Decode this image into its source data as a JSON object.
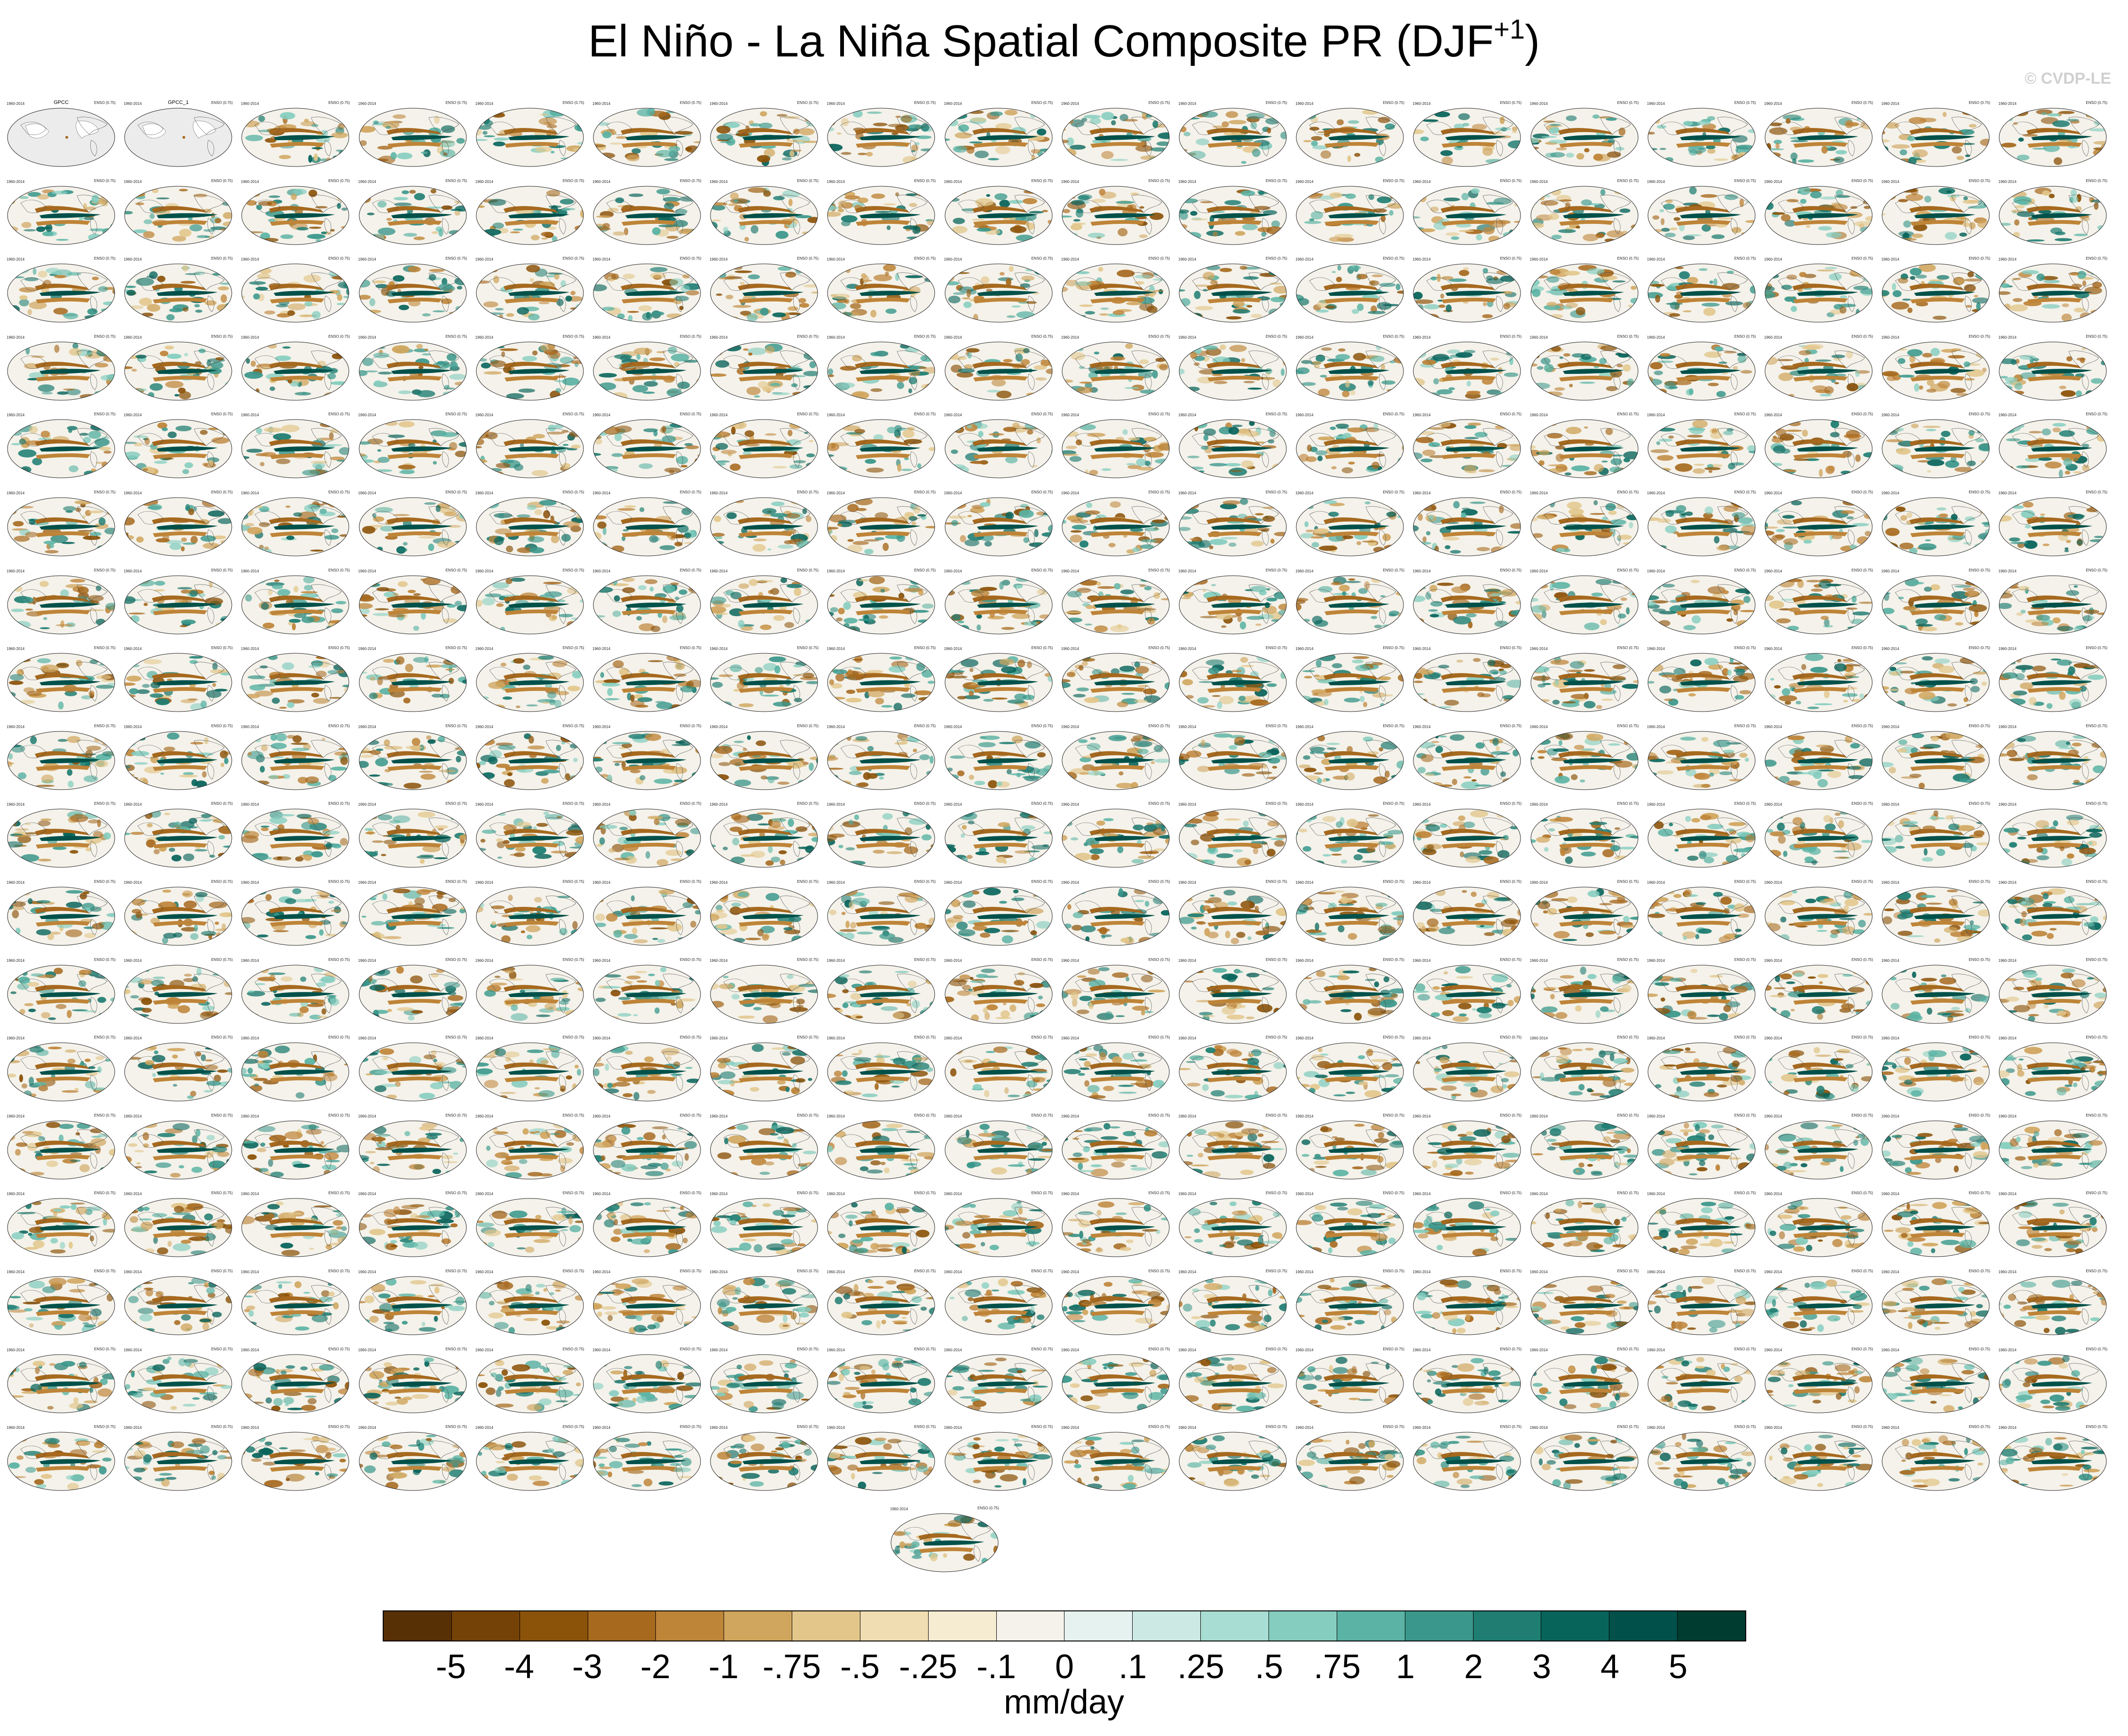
{
  "figure": {
    "title_main": "El Niño - La Niña Spatial Composite PR (DJF",
    "title_sup": "+1",
    "title_close": ")",
    "copyright": "© CVDP-LE",
    "units": "mm/day"
  },
  "panels": {
    "rows": 18,
    "columns": 18,
    "extra_last_row": 1,
    "observation_titles": [
      "GPCC",
      "GPCC_1"
    ],
    "left_period_label": "1960-2014",
    "right_note_label": "ENSO (0.75)"
  },
  "legend": {
    "labels": [
      "-5",
      "-4",
      "-3",
      "-2",
      "-1",
      "-.75",
      "-.5",
      "-.25",
      "-.1",
      "0",
      ".1",
      ".25",
      ".5",
      ".75",
      "1",
      "2",
      "3",
      "4",
      "5"
    ],
    "colors": [
      "#573006",
      "#744207",
      "#8b5209",
      "#a6691e",
      "#be8438",
      "#d0a55d",
      "#e2c68a",
      "#f0deb2",
      "#f5ecd2",
      "#f4f2ea",
      "#e6f2ef",
      "#cceae3",
      "#a7ddd2",
      "#84cdbf",
      "#5ab3a4",
      "#3a978b",
      "#1f7d72",
      "#07645b",
      "#01514a",
      "#003c30"
    ]
  }
}
